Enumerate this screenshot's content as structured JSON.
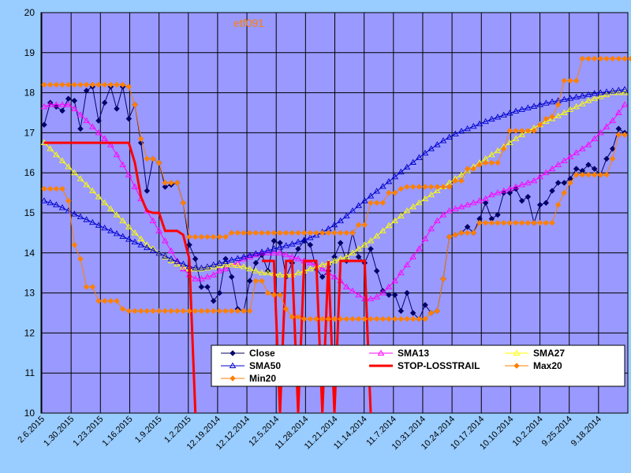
{
  "chart_data": {
    "type": "line",
    "title": "etf091",
    "ylim": [
      10,
      20
    ],
    "y_ticks": [
      "10",
      "11",
      "12",
      "13",
      "14",
      "15",
      "16",
      "17",
      "18",
      "19",
      "20"
    ],
    "x_tick_labels": [
      "2.6.2015",
      "1.30.2015",
      "1.23.2015",
      "1.16.2015",
      "1.9.2015",
      "1.2.2015",
      "12.19.2014",
      "12.12.2014",
      "12.5.2014",
      "11.28.2014",
      "11.21.2014",
      "11.14.2014",
      "11.7.2014",
      "10.31.2014",
      "10.24.2014",
      "10.17.2014",
      "10.10.2014",
      "10.2.2014",
      "9.25.2014",
      "9.18.2014"
    ],
    "legend_position": "bottom-right",
    "grid": true,
    "colors": {
      "plot_bg": "#9999ff",
      "page_bg": "#99ccff",
      "grid": "#000000"
    },
    "series": [
      {
        "name": "Close",
        "color": "#000066",
        "marker": "diamond",
        "values": [
          17.2,
          17.75,
          17.65,
          17.55,
          17.85,
          17.8,
          17.1,
          18.05,
          18.15,
          17.3,
          17.75,
          18.15,
          17.6,
          18.15,
          17.35,
          17.7,
          16.75,
          15.55,
          16.35,
          16.25,
          15.65,
          15.7,
          15.75,
          15.25,
          14.2,
          13.85,
          13.15,
          13.15,
          12.8,
          13.0,
          13.85,
          13.4,
          12.6,
          12.55,
          13.3,
          13.75,
          13.95,
          13.55,
          14.3,
          14.25,
          13.4,
          13.75,
          14.1,
          14.3,
          14.2,
          13.6,
          13.4,
          13.55,
          13.9,
          14.25,
          13.8,
          14.5,
          13.9,
          13.75,
          14.1,
          13.55,
          13.05,
          12.95,
          12.95,
          12.55,
          13.0,
          12.5,
          12.35,
          12.7,
          12.5,
          12.55,
          13.35,
          14.4,
          14.45,
          14.5,
          14.65,
          14.5,
          14.85,
          15.25,
          14.85,
          14.95,
          15.5,
          15.5,
          15.6,
          15.3,
          15.4,
          14.75,
          15.2,
          15.25,
          15.55,
          15.75,
          15.75,
          15.85,
          16.1,
          16.05,
          16.2,
          16.1,
          15.95,
          16.35,
          16.6,
          17.1,
          17.0
        ]
      },
      {
        "name": "SMA13",
        "color": "#ff00ff",
        "marker": "triangle",
        "values": [
          17.65,
          17.7,
          17.7,
          17.7,
          17.7,
          17.6,
          17.45,
          17.3,
          17.15,
          17.0,
          16.85,
          16.7,
          16.45,
          16.2,
          15.95,
          15.65,
          15.35,
          15.05,
          14.8,
          14.55,
          14.3,
          14.05,
          13.8,
          13.6,
          13.45,
          13.35,
          13.35,
          13.4,
          13.45,
          13.55,
          13.6,
          13.7,
          13.75,
          13.85,
          13.9,
          13.95,
          14.0,
          14.0,
          14.0,
          14.0,
          13.95,
          13.9,
          13.85,
          13.8,
          13.75,
          13.7,
          13.6,
          13.5,
          13.4,
          13.3,
          13.15,
          13.05,
          12.95,
          12.85,
          12.85,
          12.9,
          13.0,
          13.15,
          13.3,
          13.5,
          13.7,
          13.9,
          14.1,
          14.35,
          14.6,
          14.8,
          14.95,
          15.05,
          15.1,
          15.15,
          15.2,
          15.25,
          15.3,
          15.35,
          15.45,
          15.5,
          15.55,
          15.6,
          15.65,
          15.7,
          15.75,
          15.8,
          15.9,
          16.0,
          16.1,
          16.2,
          16.3,
          16.4,
          16.5,
          16.6,
          16.7,
          16.85,
          17.0,
          17.15,
          17.3,
          17.5,
          17.7
        ]
      },
      {
        "name": "SMA27",
        "color": "#ffff00",
        "marker": "triangle",
        "values": [
          16.75,
          16.6,
          16.45,
          16.3,
          16.15,
          16.0,
          15.85,
          15.7,
          15.55,
          15.4,
          15.25,
          15.1,
          14.95,
          14.8,
          14.65,
          14.5,
          14.35,
          14.2,
          14.1,
          14.0,
          13.9,
          13.8,
          13.72,
          13.65,
          13.6,
          13.6,
          13.6,
          13.62,
          13.65,
          13.68,
          13.7,
          13.7,
          13.68,
          13.65,
          13.6,
          13.55,
          13.5,
          13.5,
          13.48,
          13.45,
          13.45,
          13.45,
          13.5,
          13.55,
          13.6,
          13.65,
          13.7,
          13.75,
          13.8,
          13.85,
          13.9,
          14.0,
          14.1,
          14.2,
          14.3,
          14.42,
          14.55,
          14.68,
          14.8,
          14.92,
          15.05,
          15.15,
          15.25,
          15.35,
          15.45,
          15.55,
          15.65,
          15.75,
          15.85,
          15.95,
          16.05,
          16.15,
          16.25,
          16.35,
          16.45,
          16.55,
          16.65,
          16.75,
          16.85,
          16.95,
          17.05,
          17.12,
          17.2,
          17.28,
          17.35,
          17.42,
          17.5,
          17.58,
          17.65,
          17.72,
          17.8,
          17.85,
          17.9,
          17.95,
          18.0,
          18.0,
          18.0
        ]
      },
      {
        "name": "SMA50",
        "color": "#0000cc",
        "marker": "triangle",
        "values": [
          15.3,
          15.25,
          15.2,
          15.13,
          15.05,
          14.97,
          14.9,
          14.83,
          14.76,
          14.69,
          14.62,
          14.55,
          14.48,
          14.41,
          14.34,
          14.27,
          14.2,
          14.13,
          14.06,
          13.99,
          13.92,
          13.85,
          13.78,
          13.72,
          13.66,
          13.62,
          13.62,
          13.65,
          13.7,
          13.74,
          13.78,
          13.82,
          13.86,
          13.9,
          13.94,
          13.98,
          14.02,
          14.06,
          14.1,
          14.14,
          14.18,
          14.22,
          14.27,
          14.32,
          14.38,
          14.44,
          14.52,
          14.6,
          14.7,
          14.8,
          14.92,
          15.05,
          15.18,
          15.3,
          15.42,
          15.54,
          15.66,
          15.78,
          15.9,
          16.02,
          16.14,
          16.26,
          16.38,
          16.49,
          16.6,
          16.7,
          16.8,
          16.89,
          16.97,
          17.04,
          17.1,
          17.16,
          17.22,
          17.28,
          17.34,
          17.39,
          17.44,
          17.49,
          17.54,
          17.58,
          17.62,
          17.66,
          17.7,
          17.74,
          17.77,
          17.8,
          17.83,
          17.86,
          17.89,
          17.92,
          17.95,
          17.98,
          18.0,
          18.02,
          18.04,
          18.06,
          18.08
        ]
      },
      {
        "name": "STOP-LOSSTRAIL",
        "color": "#ff0000",
        "marker": "none",
        "values": [
          16.75,
          16.75,
          16.75,
          16.75,
          16.75,
          16.75,
          16.75,
          16.75,
          16.75,
          16.75,
          16.75,
          16.75,
          16.75,
          16.75,
          16.75,
          16.25,
          15.4,
          15.05,
          15.0,
          15.0,
          14.55,
          14.55,
          14.55,
          14.45,
          13.85,
          10.0,
          null,
          null,
          null,
          null,
          null,
          null,
          null,
          null,
          null,
          null,
          13.8,
          13.8,
          13.8,
          10.0,
          13.8,
          13.8,
          10.0,
          13.8,
          13.8,
          13.8,
          10.0,
          13.8,
          10.0,
          13.8,
          13.8,
          13.8,
          13.8,
          13.8,
          10.0,
          null,
          null,
          null,
          null,
          null,
          null,
          null,
          null,
          null,
          null,
          null,
          null,
          null,
          null,
          null,
          null,
          null,
          null,
          null,
          null,
          null,
          null,
          null,
          null,
          null,
          null,
          null,
          null,
          null,
          null,
          null,
          null,
          null,
          null,
          null,
          null,
          null,
          null,
          null,
          null,
          null,
          null
        ]
      },
      {
        "name": "Max20",
        "color": "#ff8000",
        "marker": "diamond",
        "values": [
          18.2,
          18.2,
          18.2,
          18.2,
          18.2,
          18.2,
          18.2,
          18.2,
          18.2,
          18.2,
          18.2,
          18.2,
          18.2,
          18.2,
          18.15,
          17.7,
          16.85,
          16.35,
          16.35,
          16.25,
          15.75,
          15.75,
          15.75,
          15.25,
          14.4,
          14.4,
          14.4,
          14.4,
          14.4,
          14.4,
          14.4,
          14.5,
          14.5,
          14.5,
          14.5,
          14.5,
          14.5,
          14.5,
          14.5,
          14.5,
          14.5,
          14.5,
          14.5,
          14.5,
          14.5,
          14.5,
          14.5,
          14.5,
          14.5,
          14.5,
          14.5,
          14.5,
          14.7,
          14.7,
          15.25,
          15.25,
          15.25,
          15.5,
          15.5,
          15.6,
          15.65,
          15.65,
          15.65,
          15.65,
          15.65,
          15.65,
          15.65,
          15.65,
          15.8,
          15.8,
          16.1,
          16.1,
          16.2,
          16.25,
          16.25,
          16.25,
          16.6,
          17.05,
          17.05,
          17.05,
          17.05,
          17.05,
          17.2,
          17.35,
          17.4,
          17.7,
          18.3,
          18.3,
          18.3,
          18.85,
          18.85,
          18.85,
          18.85,
          18.85,
          18.85,
          18.85,
          18.85,
          18.85
        ]
      },
      {
        "name": "Min20",
        "color": "#ff8000",
        "marker": "diamond",
        "values": [
          15.6,
          15.6,
          15.6,
          15.6,
          15.3,
          14.2,
          13.85,
          13.15,
          13.15,
          12.8,
          12.8,
          12.8,
          12.8,
          12.6,
          12.55,
          12.55,
          12.55,
          12.55,
          12.55,
          12.55,
          12.55,
          12.55,
          12.55,
          12.55,
          12.55,
          12.55,
          12.55,
          12.55,
          12.55,
          12.55,
          12.55,
          12.55,
          12.55,
          12.55,
          12.55,
          13.3,
          13.3,
          13.0,
          12.95,
          12.95,
          12.6,
          12.4,
          12.4,
          12.35,
          12.35,
          12.35,
          12.35,
          12.35,
          12.35,
          12.35,
          12.35,
          12.35,
          12.35,
          12.35,
          12.35,
          12.35,
          12.35,
          12.35,
          12.35,
          12.35,
          12.35,
          12.35,
          12.35,
          12.35,
          12.5,
          12.55,
          13.35,
          14.4,
          14.45,
          14.5,
          14.5,
          14.5,
          14.75,
          14.75,
          14.75,
          14.75,
          14.75,
          14.75,
          14.75,
          14.75,
          14.75,
          14.75,
          14.75,
          14.75,
          14.75,
          15.2,
          15.5,
          15.75,
          15.95,
          15.95,
          15.95,
          15.95,
          15.95,
          15.95,
          16.35,
          16.95,
          16.95
        ]
      }
    ]
  }
}
